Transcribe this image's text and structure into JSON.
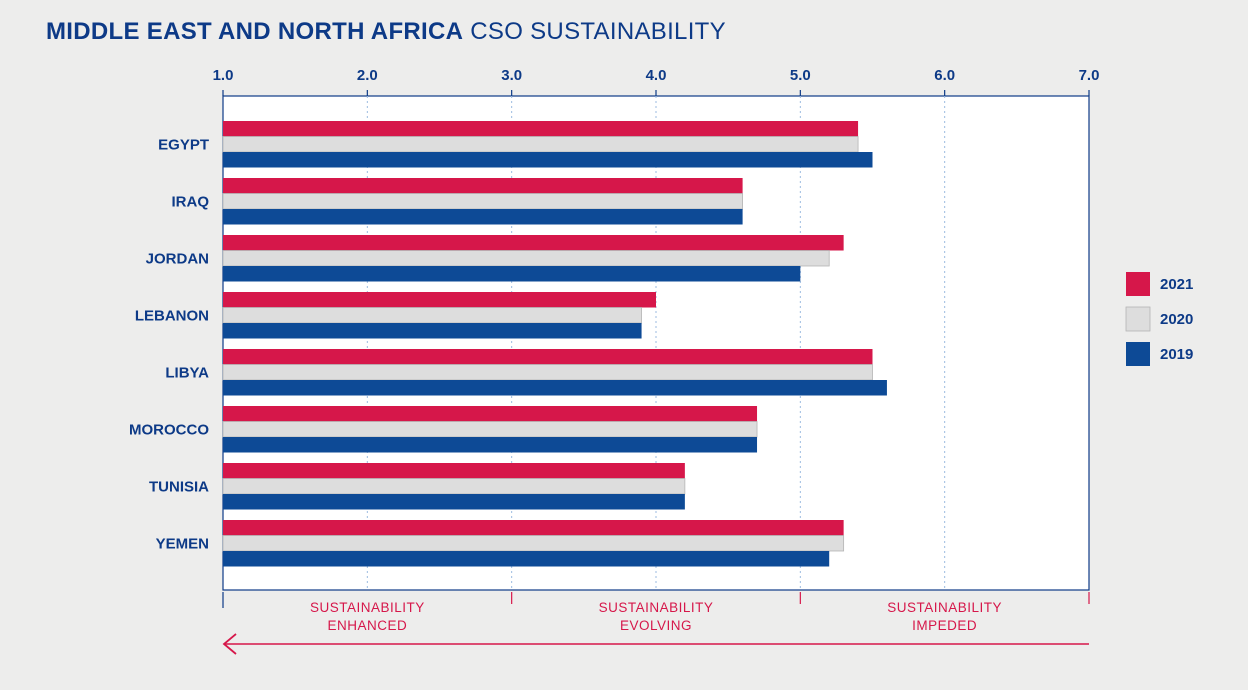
{
  "title_bold": "MIDDLE EAST AND NORTH AFRICA",
  "title_light": "CSO SUSTAINABILITY",
  "chart_data": {
    "type": "bar",
    "orientation": "horizontal",
    "title": "MIDDLE EAST AND NORTH AFRICA CSO SUSTAINABILITY",
    "categories": [
      "EGYPT",
      "IRAQ",
      "JORDAN",
      "LEBANON",
      "LIBYA",
      "MOROCCO",
      "TUNISIA",
      "YEMEN"
    ],
    "series": [
      {
        "name": "2021",
        "color": "#d6174a",
        "values": [
          5.4,
          4.6,
          5.3,
          4.0,
          5.5,
          4.7,
          4.2,
          5.3
        ]
      },
      {
        "name": "2020",
        "color": "#dddddd",
        "values": [
          5.4,
          4.6,
          5.2,
          3.9,
          5.5,
          4.7,
          4.2,
          5.3
        ]
      },
      {
        "name": "2019",
        "color": "#0d4a96",
        "values": [
          5.5,
          4.6,
          5.0,
          3.9,
          5.6,
          4.7,
          4.2,
          5.2
        ]
      }
    ],
    "xlim": [
      1.0,
      7.0
    ],
    "xticks": [
      "1.0",
      "2.0",
      "3.0",
      "4.0",
      "5.0",
      "6.0",
      "7.0"
    ],
    "xlabel": "",
    "ylabel": "",
    "grid": "vertical dotted",
    "legend": "right",
    "zones": [
      {
        "line1": "SUSTAINABILITY",
        "line2": "ENHANCED"
      },
      {
        "line1": "SUSTAINABILITY",
        "line2": "EVOLVING"
      },
      {
        "line1": "SUSTAINABILITY",
        "line2": "IMPEDED"
      }
    ]
  }
}
